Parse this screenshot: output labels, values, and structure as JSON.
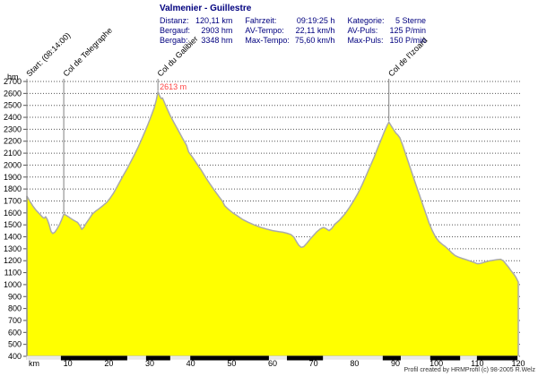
{
  "header": {
    "title": "Valmenier - Guillestre",
    "stats_columns": [
      {
        "rows": [
          {
            "label": "Distanz:",
            "value": "120,11 km"
          },
          {
            "label": "Bergauf:",
            "value": "2903 hm"
          },
          {
            "label": "Bergab:",
            "value": "3348 hm"
          }
        ]
      },
      {
        "rows": [
          {
            "label": "Fahrzeit:",
            "value": "09:19:25 h"
          },
          {
            "label": "AV-Tempo:",
            "value": "22,11 km/h"
          },
          {
            "label": "Max-Tempo:",
            "value": "75,60 km/h"
          }
        ]
      },
      {
        "rows": [
          {
            "label": "Kategorie:",
            "value": "5 Sterne"
          },
          {
            "label": "AV-Puls:",
            "value": "125 P/min"
          },
          {
            "label": "Max-Puls:",
            "value": "150 P/min"
          }
        ]
      }
    ]
  },
  "footer": {
    "credit": "Profil created by HRMProfil (c) 98-2005 R.Welz"
  },
  "chart_data": {
    "type": "area",
    "title": "Valmenier - Guillestre",
    "xlabel": "km",
    "ylabel": "hm",
    "xlim": [
      0,
      120
    ],
    "ylim": [
      400,
      2700
    ],
    "x_ticks": [
      10,
      20,
      30,
      40,
      50,
      60,
      70,
      80,
      90,
      100,
      110,
      120
    ],
    "y_ticks": [
      400,
      500,
      600,
      700,
      800,
      900,
      1000,
      1100,
      1200,
      1300,
      1400,
      1500,
      1600,
      1700,
      1800,
      1900,
      2000,
      2100,
      2200,
      2300,
      2400,
      2500,
      2600,
      2700
    ],
    "grid": "horizontal-dotted",
    "legend": "none",
    "fill_color": "#ffff00",
    "line_color": "#aaaaaa",
    "grid_color": "#555555",
    "axis_color": "#808080",
    "annotation_color": "#ff4444",
    "peak_annotation": {
      "text": "2613 m",
      "km": 32,
      "y_offset": 100
    },
    "waypoints": [
      {
        "label": "Start: (08:14:00)",
        "km": 0
      },
      {
        "label": "Col de Telegraphe",
        "km": 9
      },
      {
        "label": "Col du Galibier",
        "km": 32
      },
      {
        "label": "Col de l'Izoard",
        "km": 88.4
      }
    ],
    "axis_segments_km": [
      [
        8.3,
        24.5
      ],
      [
        29.1,
        35.0
      ],
      [
        39.9,
        59.1
      ],
      [
        63.5,
        72.3
      ],
      [
        86.9,
        91.3
      ],
      [
        98.5,
        105.8
      ],
      [
        109.9,
        119.8
      ]
    ],
    "profile": [
      [
        0,
        1740
      ],
      [
        0.7,
        1700
      ],
      [
        1.5,
        1655
      ],
      [
        2.3,
        1620
      ],
      [
        3,
        1595
      ],
      [
        3.8,
        1565
      ],
      [
        4.2,
        1555
      ],
      [
        4.6,
        1568
      ],
      [
        5,
        1545
      ],
      [
        5.4,
        1505
      ],
      [
        5.9,
        1445
      ],
      [
        6.3,
        1428
      ],
      [
        6.8,
        1438
      ],
      [
        7.4,
        1468
      ],
      [
        8,
        1505
      ],
      [
        8.5,
        1545
      ],
      [
        9,
        1590
      ],
      [
        9.3,
        1585
      ],
      [
        10,
        1570
      ],
      [
        10.8,
        1552
      ],
      [
        11.6,
        1535
      ],
      [
        12.4,
        1520
      ],
      [
        13,
        1490
      ],
      [
        13.4,
        1462
      ],
      [
        13.9,
        1480
      ],
      [
        14.4,
        1510
      ],
      [
        15.2,
        1550
      ],
      [
        16,
        1592
      ],
      [
        16.8,
        1615
      ],
      [
        17.7,
        1638
      ],
      [
        18.6,
        1662
      ],
      [
        19.5,
        1688
      ],
      [
        20.3,
        1722
      ],
      [
        21.2,
        1768
      ],
      [
        22,
        1818
      ],
      [
        22.8,
        1868
      ],
      [
        23.6,
        1918
      ],
      [
        24.5,
        1972
      ],
      [
        25.4,
        2030
      ],
      [
        26.3,
        2090
      ],
      [
        27.2,
        2152
      ],
      [
        28,
        2215
      ],
      [
        28.8,
        2278
      ],
      [
        29.6,
        2345
      ],
      [
        30.4,
        2415
      ],
      [
        31.1,
        2480
      ],
      [
        31.6,
        2545
      ],
      [
        32,
        2613
      ],
      [
        32.4,
        2580
      ],
      [
        32.8,
        2556
      ],
      [
        33.1,
        2562
      ],
      [
        33.4,
        2540
      ],
      [
        34,
        2490
      ],
      [
        35,
        2415
      ],
      [
        36,
        2350
      ],
      [
        37,
        2288
      ],
      [
        38,
        2225
      ],
      [
        39,
        2165
      ],
      [
        39.5,
        2110
      ],
      [
        40.5,
        2065
      ],
      [
        41.5,
        2012
      ],
      [
        42.5,
        1962
      ],
      [
        43.8,
        1890
      ],
      [
        44.8,
        1838
      ],
      [
        45.8,
        1788
      ],
      [
        46.8,
        1742
      ],
      [
        47.8,
        1695
      ],
      [
        48.3,
        1660
      ],
      [
        49.3,
        1628
      ],
      [
        50.3,
        1600
      ],
      [
        51.3,
        1578
      ],
      [
        52.7,
        1545
      ],
      [
        54,
        1522
      ],
      [
        55.5,
        1500
      ],
      [
        57,
        1480
      ],
      [
        58.5,
        1465
      ],
      [
        60,
        1452
      ],
      [
        61.5,
        1443
      ],
      [
        62.5,
        1438
      ],
      [
        63.5,
        1430
      ],
      [
        64.5,
        1418
      ],
      [
        65.2,
        1398
      ],
      [
        65.8,
        1362
      ],
      [
        66.4,
        1330
      ],
      [
        67,
        1312
      ],
      [
        67.6,
        1318
      ],
      [
        68.4,
        1348
      ],
      [
        69.2,
        1382
      ],
      [
        70,
        1412
      ],
      [
        70.8,
        1442
      ],
      [
        71.6,
        1465
      ],
      [
        72.4,
        1478
      ],
      [
        73,
        1470
      ],
      [
        73.8,
        1452
      ],
      [
        74.4,
        1468
      ],
      [
        75.2,
        1505
      ],
      [
        76.2,
        1535
      ],
      [
        76.9,
        1562
      ],
      [
        77.8,
        1598
      ],
      [
        78.8,
        1648
      ],
      [
        79.8,
        1702
      ],
      [
        80.8,
        1762
      ],
      [
        81.8,
        1832
      ],
      [
        82.8,
        1908
      ],
      [
        83.8,
        1988
      ],
      [
        84.8,
        2068
      ],
      [
        85.6,
        2138
      ],
      [
        86.4,
        2205
      ],
      [
        87.2,
        2272
      ],
      [
        88,
        2335
      ],
      [
        88.4,
        2360
      ],
      [
        88.9,
        2332
      ],
      [
        89.5,
        2300
      ],
      [
        90.1,
        2268
      ],
      [
        90.6,
        2252
      ],
      [
        91.1,
        2228
      ],
      [
        91.8,
        2165
      ],
      [
        92.6,
        2082
      ],
      [
        93.4,
        2000
      ],
      [
        94.2,
        1918
      ],
      [
        95,
        1838
      ],
      [
        95.8,
        1758
      ],
      [
        96.6,
        1678
      ],
      [
        97.4,
        1598
      ],
      [
        98.2,
        1518
      ],
      [
        99,
        1452
      ],
      [
        99.8,
        1398
      ],
      [
        100.6,
        1362
      ],
      [
        101.4,
        1338
      ],
      [
        102.2,
        1318
      ],
      [
        103,
        1292
      ],
      [
        103.8,
        1265
      ],
      [
        104.6,
        1242
      ],
      [
        105.4,
        1230
      ],
      [
        106.2,
        1220
      ],
      [
        107,
        1212
      ],
      [
        108,
        1200
      ],
      [
        109,
        1188
      ],
      [
        110,
        1175
      ],
      [
        110.8,
        1178
      ],
      [
        111.6,
        1186
      ],
      [
        112.4,
        1194
      ],
      [
        113.2,
        1200
      ],
      [
        114,
        1205
      ],
      [
        114.8,
        1209
      ],
      [
        115.7,
        1212
      ],
      [
        116.4,
        1198
      ],
      [
        117,
        1172
      ],
      [
        117.6,
        1148
      ],
      [
        118.2,
        1118
      ],
      [
        118.8,
        1092
      ],
      [
        119.4,
        1062
      ],
      [
        120,
        1022
      ]
    ]
  }
}
